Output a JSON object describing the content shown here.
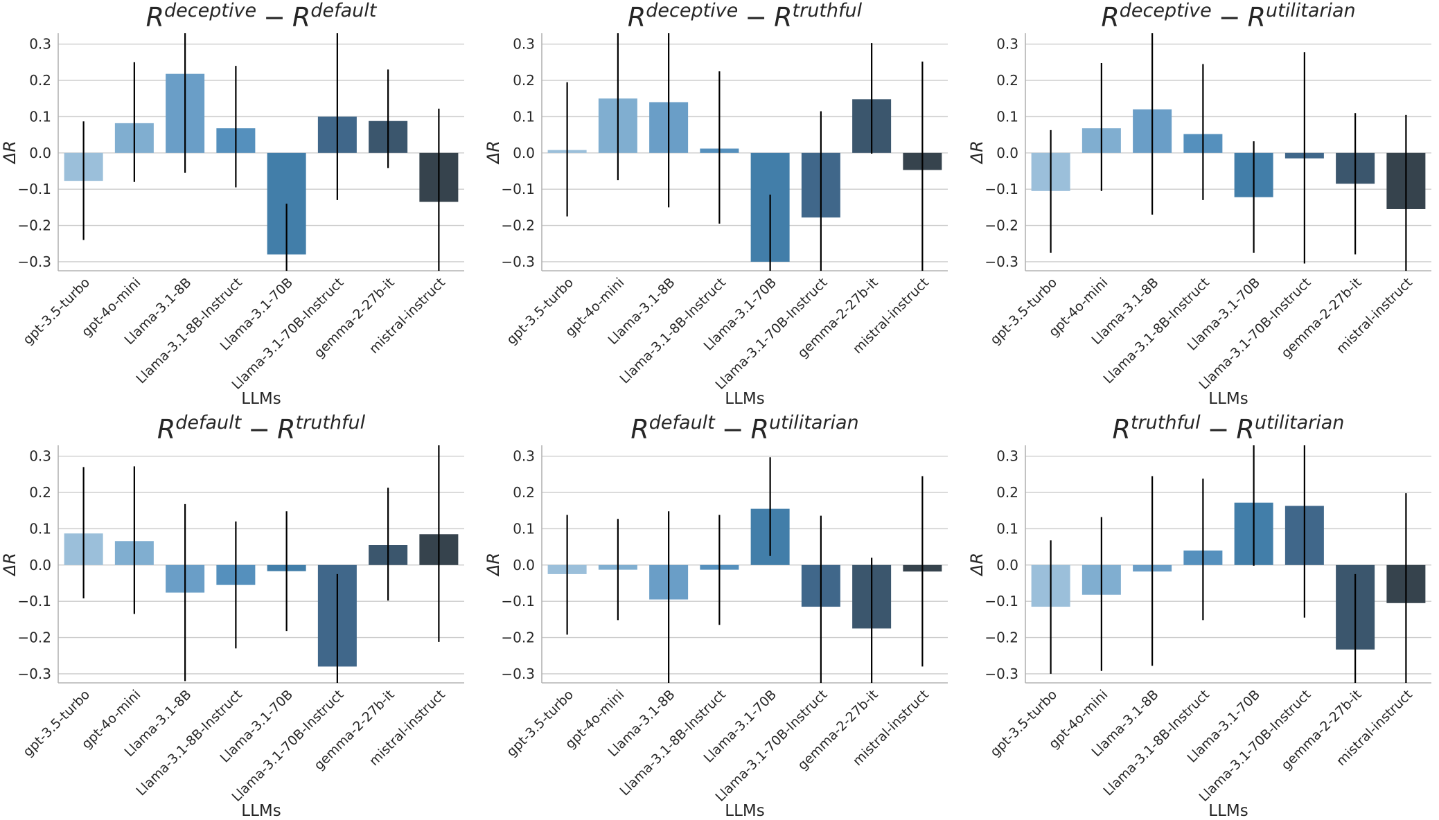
{
  "chart_data": {
    "type": "bar",
    "layout": "2x3 grid",
    "categories": [
      "gpt-3.5-turbo",
      "gpt-4o-mini",
      "Llama-3.1-8B",
      "Llama-3.1-8B-Instruct",
      "Llama-3.1-70B",
      "Llama-3.1-70B-Instruct",
      "gemma-2-27b-it",
      "mistral-instruct"
    ],
    "bar_colors": [
      "#9bbfda",
      "#80aed0",
      "#6a9ec7",
      "#5590bd",
      "#427ea9",
      "#40678a",
      "#3b566d",
      "#36434d"
    ],
    "ylim": [
      -0.325,
      0.33
    ],
    "yticks": [
      -0.3,
      -0.2,
      -0.1,
      0.0,
      0.1,
      0.2,
      0.3
    ],
    "ytick_labels": [
      "−0.3",
      "−0.2",
      "−0.1",
      "0.0",
      "0.1",
      "0.2",
      "0.3"
    ],
    "xlabel": "LLMs",
    "ylabel": "ΔR",
    "grid": true,
    "panels": [
      {
        "title": {
          "r1": "R",
          "s1": "deceptive",
          "minus": "−",
          "r2": "R",
          "s2": "default"
        },
        "values": [
          -0.077,
          0.082,
          0.218,
          0.068,
          -0.28,
          0.1,
          0.088,
          -0.135
        ],
        "err_low": [
          -0.24,
          -0.08,
          -0.055,
          -0.095,
          -0.325,
          -0.13,
          -0.042,
          -0.325
        ],
        "err_high": [
          0.087,
          0.25,
          0.33,
          0.24,
          -0.14,
          0.33,
          0.23,
          0.122
        ]
      },
      {
        "title": {
          "r1": "R",
          "s1": "deceptive",
          "minus": "−",
          "r2": "R",
          "s2": "truthful"
        },
        "values": [
          0.008,
          0.15,
          0.14,
          0.012,
          -0.3,
          -0.178,
          0.148,
          -0.047
        ],
        "err_low": [
          -0.175,
          -0.075,
          -0.15,
          -0.195,
          -0.325,
          -0.325,
          -0.002,
          -0.325
        ],
        "err_high": [
          0.195,
          0.33,
          0.33,
          0.225,
          -0.115,
          0.115,
          0.303,
          0.252
        ]
      },
      {
        "title": {
          "r1": "R",
          "s1": "deceptive",
          "minus": "−",
          "r2": "R",
          "s2": "utilitarian"
        },
        "values": [
          -0.105,
          0.068,
          0.12,
          0.052,
          -0.122,
          -0.015,
          -0.085,
          -0.155
        ],
        "err_low": [
          -0.275,
          -0.105,
          -0.17,
          -0.13,
          -0.275,
          -0.305,
          -0.28,
          -0.325
        ],
        "err_high": [
          0.063,
          0.248,
          0.33,
          0.245,
          0.032,
          0.278,
          0.11,
          0.105
        ]
      },
      {
        "title": {
          "r1": "R",
          "s1": "default",
          "minus": "−",
          "r2": "R",
          "s2": "truthful"
        },
        "values": [
          0.087,
          0.066,
          -0.076,
          -0.055,
          -0.017,
          -0.28,
          0.055,
          0.085
        ],
        "err_low": [
          -0.092,
          -0.135,
          -0.32,
          -0.23,
          -0.182,
          -0.325,
          -0.098,
          -0.212
        ],
        "err_high": [
          0.27,
          0.272,
          0.168,
          0.12,
          0.148,
          -0.025,
          0.213,
          0.33
        ]
      },
      {
        "title": {
          "r1": "R",
          "s1": "default",
          "minus": "−",
          "r2": "R",
          "s2": "utilitarian"
        },
        "values": [
          -0.025,
          -0.013,
          -0.095,
          -0.013,
          0.155,
          -0.115,
          -0.175,
          -0.018
        ],
        "err_low": [
          -0.192,
          -0.152,
          -0.325,
          -0.165,
          0.025,
          -0.325,
          -0.325,
          -0.28
        ],
        "err_high": [
          0.138,
          0.127,
          0.148,
          0.138,
          0.297,
          0.136,
          0.02,
          0.245
        ]
      },
      {
        "title": {
          "r1": "R",
          "s1": "truthful",
          "minus": "−",
          "r2": "R",
          "s2": "utilitarian"
        },
        "values": [
          -0.115,
          -0.082,
          -0.018,
          0.04,
          0.172,
          0.163,
          -0.233,
          -0.105
        ],
        "err_low": [
          -0.3,
          -0.292,
          -0.278,
          -0.152,
          -0.002,
          -0.145,
          -0.325,
          -0.325
        ],
        "err_high": [
          0.068,
          0.132,
          0.245,
          0.238,
          0.33,
          0.33,
          -0.025,
          0.198
        ]
      }
    ]
  }
}
